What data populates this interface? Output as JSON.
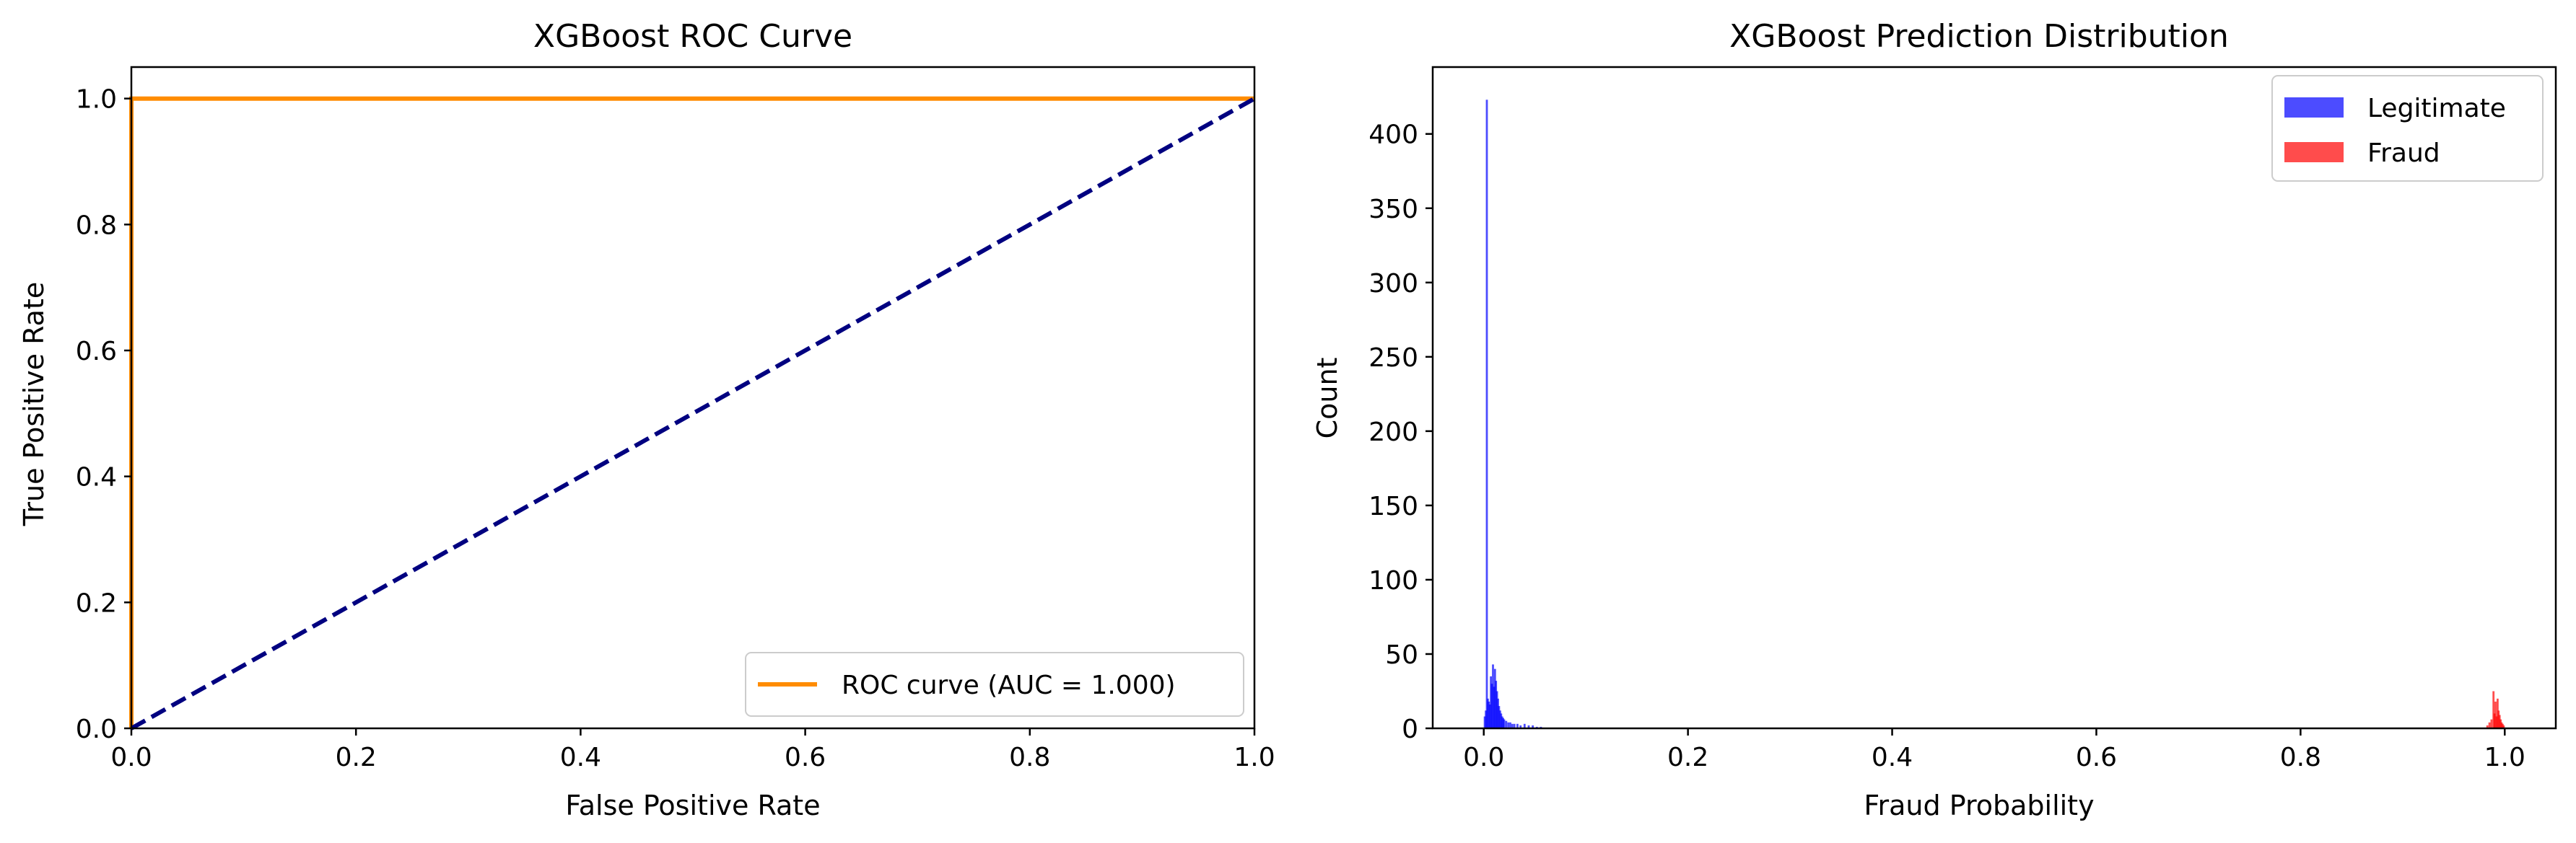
{
  "chart_data": [
    {
      "type": "line",
      "title": "XGBoost ROC Curve",
      "xlabel": "False Positive Rate",
      "ylabel": "True Positive Rate",
      "xlim": [
        0.0,
        1.0
      ],
      "ylim": [
        0.0,
        1.05
      ],
      "xticks": [
        "0.0",
        "0.2",
        "0.4",
        "0.6",
        "0.8",
        "1.0"
      ],
      "yticks": [
        "0.0",
        "0.2",
        "0.4",
        "0.6",
        "0.8",
        "1.0"
      ],
      "grid": false,
      "legend_position": "lower-right",
      "series": [
        {
          "name": "ROC curve (AUC = 1.000)",
          "color": "#ff8c00",
          "style": "solid",
          "x": [
            0.0,
            0.0,
            1.0
          ],
          "y": [
            0.0,
            1.0,
            1.0
          ]
        },
        {
          "color": "#000080",
          "style": "dashed",
          "x": [
            0.0,
            1.0
          ],
          "y": [
            0.0,
            1.0
          ]
        }
      ]
    },
    {
      "type": "bar",
      "subtype": "histogram",
      "title": "XGBoost Prediction Distribution",
      "xlabel": "Fraud Probability",
      "ylabel": "Count",
      "xlim": [
        -0.05,
        1.05
      ],
      "ylim": [
        0,
        445
      ],
      "xticks": [
        "0.0",
        "0.2",
        "0.4",
        "0.6",
        "0.8",
        "1.0"
      ],
      "yticks": [
        "0",
        "50",
        "100",
        "150",
        "200",
        "250",
        "300",
        "350",
        "400"
      ],
      "grid": false,
      "legend_position": "top-right",
      "series": [
        {
          "name": "Legitimate",
          "color": "#0000ff",
          "alpha": 0.7,
          "bins": [
            [
              0.001,
              8
            ],
            [
              0.002,
              12
            ],
            [
              0.003,
              423
            ],
            [
              0.004,
              20
            ],
            [
              0.005,
              18
            ],
            [
              0.006,
              16
            ],
            [
              0.007,
              35
            ],
            [
              0.008,
              30
            ],
            [
              0.009,
              43
            ],
            [
              0.01,
              28
            ],
            [
              0.011,
              40
            ],
            [
              0.012,
              32
            ],
            [
              0.013,
              25
            ],
            [
              0.014,
              20
            ],
            [
              0.015,
              15
            ],
            [
              0.016,
              12
            ],
            [
              0.017,
              10
            ],
            [
              0.018,
              8
            ],
            [
              0.019,
              7
            ],
            [
              0.02,
              6
            ],
            [
              0.022,
              5
            ],
            [
              0.024,
              4
            ],
            [
              0.026,
              4
            ],
            [
              0.028,
              3
            ],
            [
              0.03,
              3
            ],
            [
              0.033,
              3
            ],
            [
              0.036,
              2
            ],
            [
              0.04,
              3
            ],
            [
              0.044,
              2
            ],
            [
              0.048,
              2
            ],
            [
              0.052,
              1
            ],
            [
              0.056,
              1
            ]
          ]
        },
        {
          "name": "Fraud",
          "color": "#ff0000",
          "alpha": 0.7,
          "bins": [
            [
              0.983,
              2
            ],
            [
              0.985,
              4
            ],
            [
              0.987,
              6
            ],
            [
              0.989,
              25
            ],
            [
              0.99,
              10
            ],
            [
              0.991,
              18
            ],
            [
              0.992,
              8
            ],
            [
              0.993,
              20
            ],
            [
              0.994,
              12
            ],
            [
              0.995,
              9
            ],
            [
              0.996,
              6
            ],
            [
              0.997,
              4
            ],
            [
              0.998,
              3
            ],
            [
              0.999,
              2
            ]
          ]
        }
      ]
    }
  ]
}
